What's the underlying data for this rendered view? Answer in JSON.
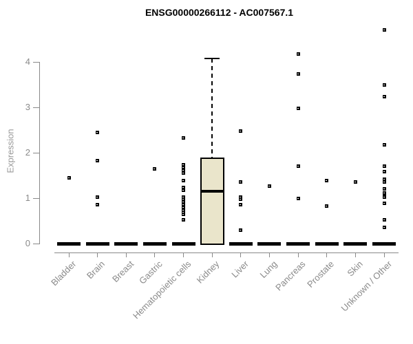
{
  "title": "ENSG00000266112 - AC007567.1",
  "chart_data": {
    "type": "boxplot",
    "title": "ENSG00000266112 - AC007567.1",
    "xlabel": "",
    "ylabel": "Expression",
    "ylim": [
      0,
      4.8
    ],
    "yticks": [
      0,
      1,
      2,
      3,
      4
    ],
    "grid": false,
    "box_fill_color": "#eae5cb",
    "box_line_color": "#000000",
    "axis_color": "#888888",
    "label_color": "#8a8a8a",
    "categories": [
      "Bladder",
      "Brain",
      "Breast",
      "Gastric",
      "Hematopoietic cells",
      "Kidney",
      "Liver",
      "Lung",
      "Pancreas",
      "Prostate",
      "Skin",
      "Unknown / Other"
    ],
    "series": [
      {
        "name": "Bladder",
        "box": {
          "low": 0,
          "q1": 0,
          "median": 0,
          "q3": 0,
          "high": 0
        },
        "points": [
          1.45
        ]
      },
      {
        "name": "Brain",
        "box": {
          "low": 0,
          "q1": 0,
          "median": 0,
          "q3": 0,
          "high": 0
        },
        "points": [
          2.44,
          1.83,
          1.02,
          0.86
        ]
      },
      {
        "name": "Breast",
        "box": {
          "low": 0,
          "q1": 0,
          "median": 0,
          "q3": 0,
          "high": 0
        },
        "points": []
      },
      {
        "name": "Gastric",
        "box": {
          "low": 0,
          "q1": 0,
          "median": 0,
          "q3": 0,
          "high": 0
        },
        "points": [
          1.65
        ]
      },
      {
        "name": "Hematopoietic cells",
        "box": {
          "low": 0,
          "q1": 0,
          "median": 0,
          "q3": 0,
          "high": 0
        },
        "points": [
          2.33,
          1.74,
          1.68,
          1.62,
          1.55,
          1.38,
          1.23,
          1.17,
          1.02,
          0.97,
          0.92,
          0.86,
          0.8,
          0.74,
          0.69,
          0.64,
          0.52
        ]
      },
      {
        "name": "Kidney",
        "box": {
          "low": 0,
          "q1": 0,
          "median": 1.15,
          "q3": 1.89,
          "high": 4.08
        },
        "points": []
      },
      {
        "name": "Liver",
        "box": {
          "low": 0,
          "q1": 0,
          "median": 0,
          "q3": 0,
          "high": 0
        },
        "points": [
          2.48,
          1.35,
          1.03,
          0.97,
          0.86,
          0.3
        ]
      },
      {
        "name": "Lung",
        "box": {
          "low": 0,
          "q1": 0,
          "median": 0,
          "q3": 0,
          "high": 0
        },
        "points": [
          1.26
        ]
      },
      {
        "name": "Pancreas",
        "box": {
          "low": 0,
          "q1": 0,
          "median": 0,
          "q3": 0,
          "high": 0
        },
        "points": [
          4.17,
          3.73,
          2.98,
          1.7,
          1.0
        ]
      },
      {
        "name": "Prostate",
        "box": {
          "low": 0,
          "q1": 0,
          "median": 0,
          "q3": 0,
          "high": 0
        },
        "points": [
          1.38,
          0.82
        ]
      },
      {
        "name": "Skin",
        "box": {
          "low": 0,
          "q1": 0,
          "median": 0,
          "q3": 0,
          "high": 0
        },
        "points": [
          1.35
        ]
      },
      {
        "name": "Unknown / Other",
        "box": {
          "low": 0,
          "q1": 0,
          "median": 0,
          "q3": 0,
          "high": 0
        },
        "points": [
          4.71,
          3.5,
          3.24,
          2.17,
          1.71,
          1.59,
          1.42,
          1.36,
          1.21,
          1.11,
          1.06,
          1.02,
          0.89,
          0.52,
          0.36
        ]
      }
    ]
  }
}
